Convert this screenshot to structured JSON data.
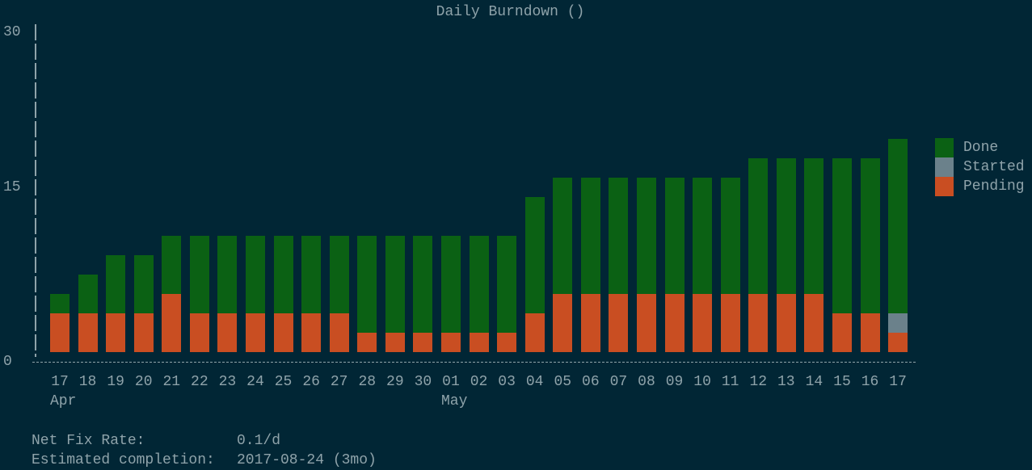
{
  "chart_data": {
    "type": "bar",
    "stacked": true,
    "title": "Daily Burndown ()",
    "yticks": [
      "0",
      "15",
      "30"
    ],
    "ylim": [
      0,
      30
    ],
    "categories": [
      "17",
      "18",
      "19",
      "20",
      "21",
      "22",
      "23",
      "24",
      "25",
      "26",
      "27",
      "28",
      "29",
      "30",
      "01",
      "02",
      "03",
      "04",
      "05",
      "06",
      "07",
      "08",
      "09",
      "10",
      "11",
      "12",
      "13",
      "14",
      "15",
      "16",
      "17"
    ],
    "month_labels": [
      {
        "label": "Apr",
        "at": 0
      },
      {
        "label": "May",
        "at": 14
      }
    ],
    "series": [
      {
        "name": "Pending",
        "color": "#c94e22",
        "values": [
          3,
          3,
          3,
          3,
          5,
          3,
          3,
          3,
          3,
          3,
          3,
          2,
          2,
          2,
          2,
          2,
          2,
          3,
          5,
          5,
          5,
          5,
          5,
          5,
          5,
          5,
          5,
          5,
          3,
          3,
          2
        ]
      },
      {
        "name": "Started",
        "color": "#6b818b",
        "values": [
          0,
          0,
          0,
          0,
          0,
          0,
          0,
          0,
          0,
          0,
          0,
          0,
          0,
          0,
          0,
          0,
          0,
          0,
          0,
          0,
          0,
          0,
          0,
          0,
          0,
          0,
          0,
          0,
          0,
          0,
          1
        ]
      },
      {
        "name": "Done",
        "color": "#0b6114",
        "values": [
          2,
          4,
          5,
          5,
          5,
          7,
          7,
          7,
          7,
          7,
          7,
          8,
          8,
          8,
          8,
          8,
          8,
          10,
          10,
          10,
          10,
          10,
          10,
          10,
          10,
          12,
          12,
          12,
          14,
          14,
          15
        ]
      }
    ],
    "legend": {
      "placement": "right",
      "order": [
        "Done",
        "Started",
        "Pending"
      ]
    },
    "grid": false
  },
  "summary": {
    "net_fix_rate_label": "Net Fix Rate:",
    "net_fix_rate_value": "0.1/d",
    "estimated_completion_label": "Estimated completion:",
    "estimated_completion_value": "2017-08-24 (3mo)"
  },
  "colors": {
    "background": "#012635",
    "text": "#8fa3aa"
  }
}
